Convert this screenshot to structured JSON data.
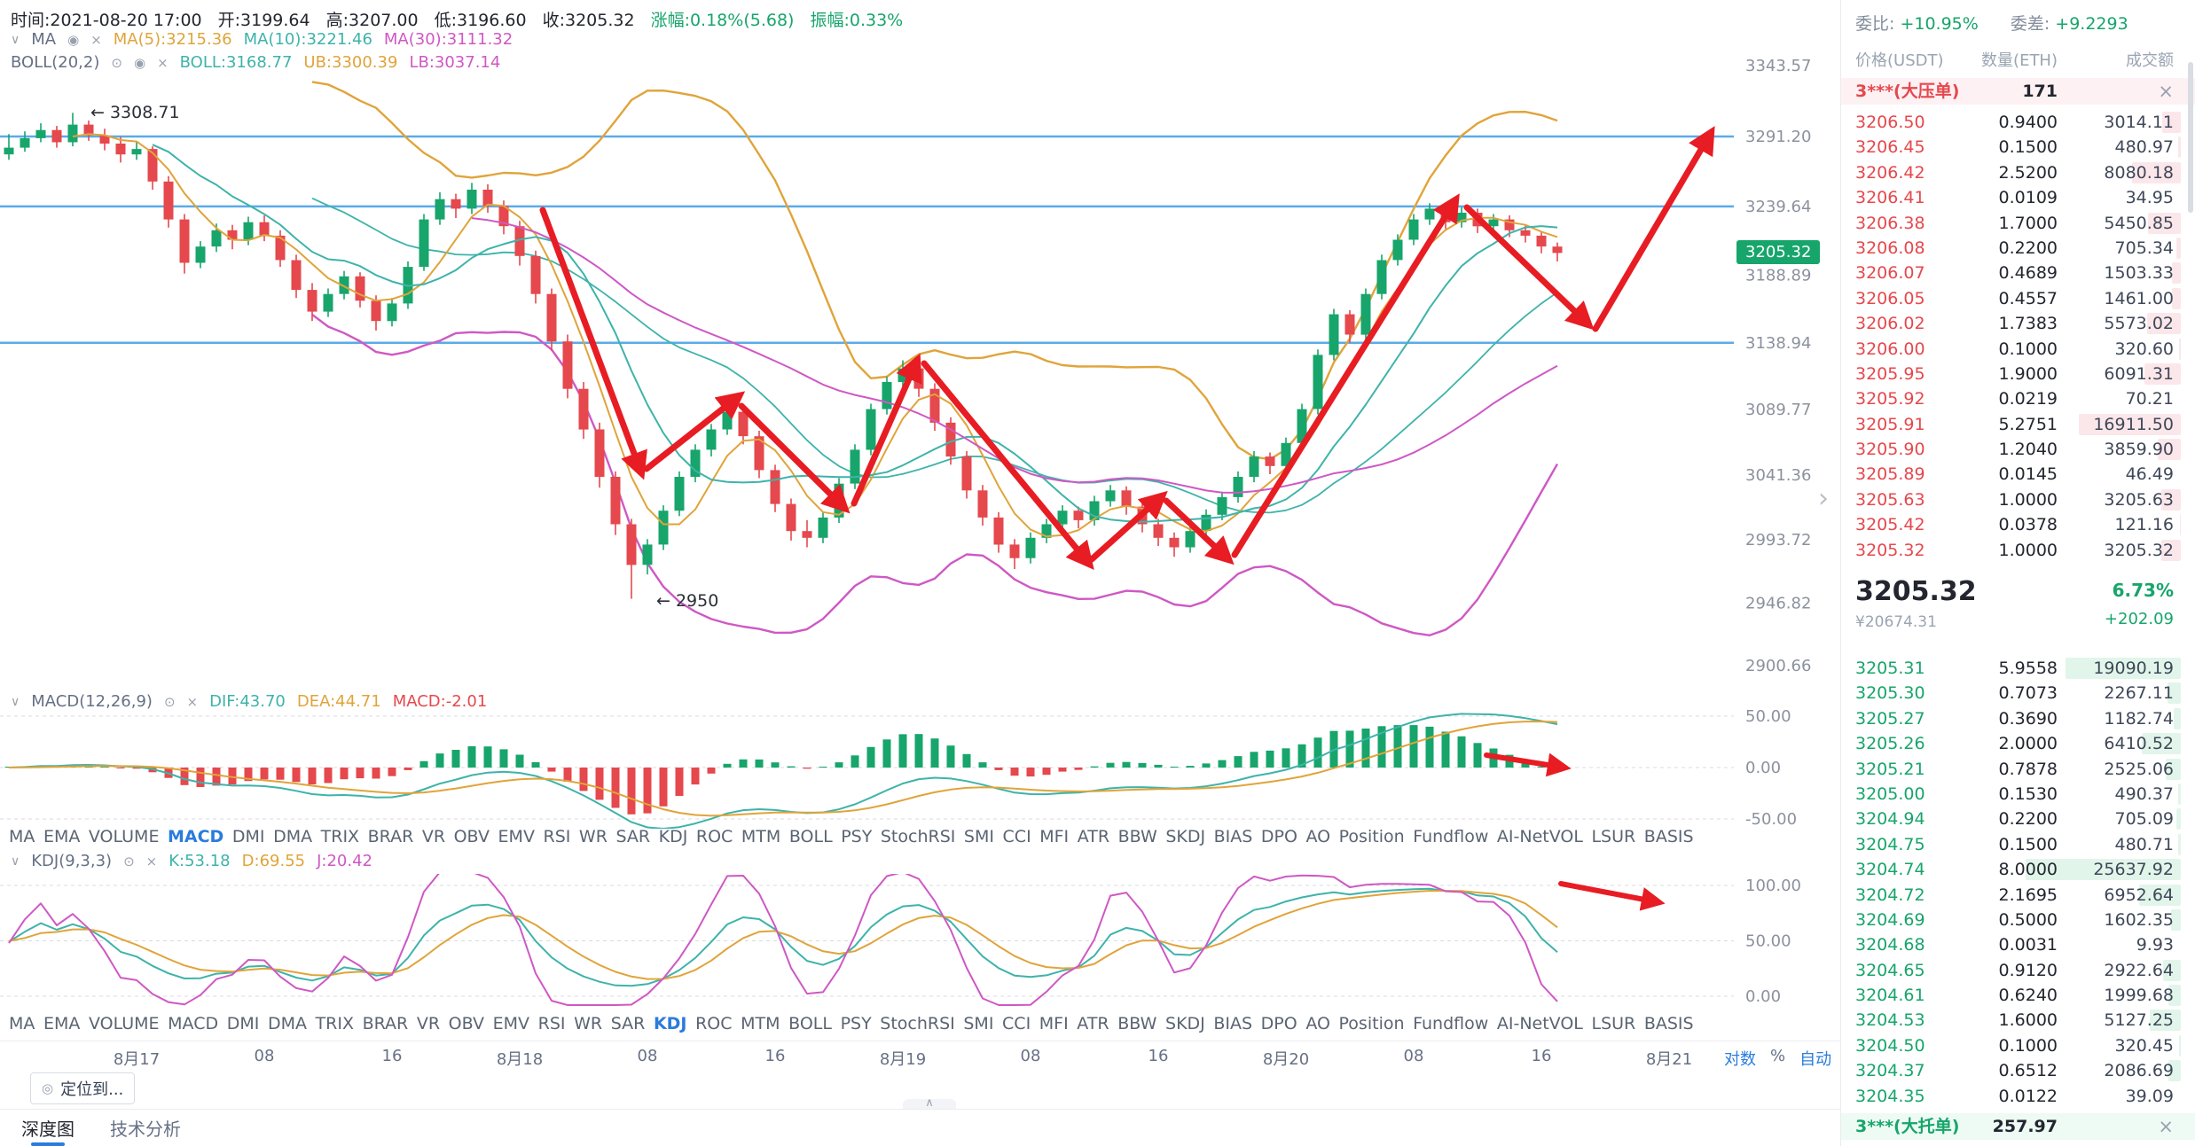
{
  "colors": {
    "up": "#17a56b",
    "down": "#e5484d",
    "blue_accent": "#2b7cdb",
    "blue_line": "#5aabe8",
    "yellow": "#e0a43a",
    "teal": "#3eb3aa",
    "magenta": "#cf58c4",
    "arrow_red": "#e81c23",
    "badge_green": "#17a56b"
  },
  "header": {
    "time": "时间:2021-08-20 17:00",
    "open": "开:3199.64",
    "high": "高:3207.00",
    "low": "低:3196.60",
    "close": "收:3205.32",
    "change": "涨幅:0.18%(5.68)",
    "amplitude": "振幅:0.33%"
  },
  "ma_row": {
    "name": "MA",
    "ma5": "MA(5):3215.36",
    "ma10": "MA(10):3221.46",
    "ma30": "MA(30):3111.32"
  },
  "boll_row": {
    "name": "BOLL(20,2)",
    "boll": "BOLL:3168.77",
    "ub": "UB:3300.39",
    "lb": "LB:3037.14"
  },
  "macd_row": {
    "name": "MACD(12,26,9)",
    "dif": "DIF:43.70",
    "dea": "DEA:44.71",
    "macd": "MACD:-2.01"
  },
  "kdj_row": {
    "name": "KDJ(9,3,3)",
    "k": "K:53.18",
    "d": "D:69.55",
    "j": "J:20.42"
  },
  "annotations": {
    "high_label": "← 3308.71",
    "low_label": "← 2950",
    "price_tag": "3205.32"
  },
  "indicator_tabs": [
    "MA",
    "EMA",
    "VOLUME",
    "MACD",
    "DMI",
    "DMA",
    "TRIX",
    "BRAR",
    "VR",
    "OBV",
    "EMV",
    "RSI",
    "WR",
    "SAR",
    "KDJ",
    "ROC",
    "MTM",
    "BOLL",
    "PSY",
    "StochRSI",
    "SMI",
    "CCI",
    "MFI",
    "ATR",
    "BBW",
    "SKDJ",
    "BIAS",
    "DPO",
    "AO",
    "Position",
    "Fundflow",
    "AI-NetVOL",
    "LSUR",
    "BASIS"
  ],
  "active_tab_row1": "MACD",
  "active_tab_row2": "KDJ",
  "scale_controls": {
    "log": "对数",
    "percent": "%",
    "auto": "自动"
  },
  "locate_button": "定位到...",
  "bottom_tabs": [
    "深度图",
    "技术分析"
  ],
  "order_book": {
    "ratio_label": "委比:",
    "ratio_value": "+10.95%",
    "diff_label": "委差:",
    "diff_value": "+9.2293",
    "columns": [
      "价格(USDT)",
      "数量(ETH)",
      "成交额"
    ],
    "big_sell": {
      "label": "3***(大压单)",
      "value": "171"
    },
    "big_buy": {
      "label": "3***(大托单)",
      "value": "257.97"
    },
    "asks": [
      [
        "3206.50",
        "0.9400",
        "3014.11"
      ],
      [
        "3206.45",
        "0.1500",
        "480.97"
      ],
      [
        "3206.42",
        "2.5200",
        "8080.18"
      ],
      [
        "3206.41",
        "0.0109",
        "34.95"
      ],
      [
        "3206.38",
        "1.7000",
        "5450.85"
      ],
      [
        "3206.08",
        "0.2200",
        "705.34"
      ],
      [
        "3206.07",
        "0.4689",
        "1503.33"
      ],
      [
        "3206.05",
        "0.4557",
        "1461.00"
      ],
      [
        "3206.02",
        "1.7383",
        "5573.02"
      ],
      [
        "3206.00",
        "0.1000",
        "320.60"
      ],
      [
        "3205.95",
        "1.9000",
        "6091.31"
      ],
      [
        "3205.92",
        "0.0219",
        "70.21"
      ],
      [
        "3205.91",
        "5.2751",
        "16911.50"
      ],
      [
        "3205.90",
        "1.2040",
        "3859.90"
      ],
      [
        "3205.89",
        "0.0145",
        "46.49"
      ],
      [
        "3205.63",
        "1.0000",
        "3205.63"
      ],
      [
        "3205.42",
        "0.0378",
        "121.16"
      ],
      [
        "3205.32",
        "1.0000",
        "3205.32"
      ]
    ],
    "last_price": "3205.32",
    "change_pct": "6.73%",
    "cny": "¥20674.31",
    "change_abs": "+202.09",
    "bids": [
      [
        "3205.31",
        "5.9558",
        "19090.19"
      ],
      [
        "3205.30",
        "0.7073",
        "2267.11"
      ],
      [
        "3205.27",
        "0.3690",
        "1182.74"
      ],
      [
        "3205.26",
        "2.0000",
        "6410.52"
      ],
      [
        "3205.21",
        "0.7878",
        "2525.06"
      ],
      [
        "3205.00",
        "0.1530",
        "490.37"
      ],
      [
        "3204.94",
        "0.2200",
        "705.09"
      ],
      [
        "3204.75",
        "0.1500",
        "480.71"
      ],
      [
        "3204.74",
        "8.0000",
        "25637.92"
      ],
      [
        "3204.72",
        "2.1695",
        "6952.64"
      ],
      [
        "3204.69",
        "0.5000",
        "1602.35"
      ],
      [
        "3204.68",
        "0.0031",
        "9.93"
      ],
      [
        "3204.65",
        "0.9120",
        "2922.64"
      ],
      [
        "3204.61",
        "0.6240",
        "1999.68"
      ],
      [
        "3204.53",
        "1.6000",
        "5127.25"
      ],
      [
        "3204.50",
        "0.1000",
        "320.45"
      ],
      [
        "3204.37",
        "0.6512",
        "2086.69"
      ],
      [
        "3204.35",
        "0.0122",
        "39.09"
      ]
    ]
  },
  "chart_data": {
    "type": "candlestick",
    "price_axis_labels": [
      "3343.57",
      "3291.20",
      "3239.64",
      "3188.89",
      "3138.94",
      "3089.77",
      "3041.36",
      "2993.72",
      "2946.82",
      "2900.66"
    ],
    "macd_axis_labels": [
      "50.00",
      "0.00",
      "-50.00"
    ],
    "kdj_axis_labels": [
      "100.00",
      "50.00",
      "0.00"
    ],
    "horizontal_lines": [
      3291.2,
      3239.64,
      3138.94
    ],
    "time_axis": [
      "8月17",
      "08",
      "16",
      "8月18",
      "08",
      "16",
      "8月19",
      "08",
      "16",
      "8月20",
      "08",
      "16",
      "8月21"
    ],
    "last_price": 3205.32,
    "high_annotation": 3308.71,
    "low_annotation": 2950,
    "candles": [
      [
        3278,
        3293,
        3274,
        3283
      ],
      [
        3283,
        3295,
        3280,
        3290
      ],
      [
        3290,
        3301,
        3287,
        3296
      ],
      [
        3296,
        3299,
        3283,
        3287
      ],
      [
        3287,
        3308.71,
        3284,
        3300
      ],
      [
        3300,
        3303,
        3288,
        3292
      ],
      [
        3292,
        3297,
        3281,
        3286
      ],
      [
        3286,
        3291,
        3272,
        3278
      ],
      [
        3278,
        3287,
        3274,
        3282
      ],
      [
        3282,
        3284,
        3252,
        3258
      ],
      [
        3258,
        3262,
        3224,
        3230
      ],
      [
        3230,
        3234,
        3190,
        3198
      ],
      [
        3198,
        3214,
        3194,
        3210
      ],
      [
        3210,
        3227,
        3206,
        3222
      ],
      [
        3222,
        3226,
        3208,
        3215
      ],
      [
        3215,
        3232,
        3211,
        3228
      ],
      [
        3228,
        3233,
        3214,
        3218
      ],
      [
        3218,
        3222,
        3195,
        3200
      ],
      [
        3200,
        3204,
        3172,
        3178
      ],
      [
        3178,
        3183,
        3155,
        3162
      ],
      [
        3162,
        3179,
        3158,
        3175
      ],
      [
        3175,
        3192,
        3171,
        3188
      ],
      [
        3188,
        3191,
        3165,
        3170
      ],
      [
        3170,
        3174,
        3148,
        3155
      ],
      [
        3155,
        3172,
        3151,
        3168
      ],
      [
        3168,
        3199,
        3164,
        3195
      ],
      [
        3195,
        3234,
        3192,
        3230
      ],
      [
        3230,
        3250,
        3226,
        3245
      ],
      [
        3245,
        3249,
        3231,
        3238
      ],
      [
        3238,
        3257,
        3234,
        3252
      ],
      [
        3252,
        3256,
        3235,
        3240
      ],
      [
        3240,
        3244,
        3219,
        3225
      ],
      [
        3225,
        3229,
        3196,
        3203
      ],
      [
        3203,
        3207,
        3168,
        3175
      ],
      [
        3175,
        3179,
        3133,
        3140
      ],
      [
        3140,
        3145,
        3098,
        3105
      ],
      [
        3105,
        3110,
        3068,
        3075
      ],
      [
        3075,
        3080,
        3032,
        3040
      ],
      [
        3040,
        3044,
        2997,
        3005
      ],
      [
        3005,
        3009,
        2950,
        2975
      ],
      [
        2975,
        2994,
        2968,
        2990
      ],
      [
        2990,
        3019,
        2986,
        3015
      ],
      [
        3015,
        3044,
        3011,
        3040
      ],
      [
        3040,
        3064,
        3036,
        3060
      ],
      [
        3060,
        3079,
        3055,
        3075
      ],
      [
        3075,
        3093,
        3071,
        3088
      ],
      [
        3088,
        3091,
        3064,
        3070
      ],
      [
        3070,
        3074,
        3039,
        3045
      ],
      [
        3045,
        3049,
        3014,
        3020
      ],
      [
        3020,
        3024,
        2993,
        3000
      ],
      [
        3000,
        3008,
        2988,
        2995
      ],
      [
        2995,
        3014,
        2991,
        3010
      ],
      [
        3010,
        3039,
        3006,
        3035
      ],
      [
        3035,
        3064,
        3031,
        3060
      ],
      [
        3060,
        3094,
        3056,
        3090
      ],
      [
        3090,
        3114,
        3086,
        3110
      ],
      [
        3110,
        3126,
        3105,
        3120
      ],
      [
        3120,
        3123,
        3099,
        3105
      ],
      [
        3105,
        3109,
        3074,
        3080
      ],
      [
        3080,
        3084,
        3049,
        3055
      ],
      [
        3055,
        3059,
        3024,
        3030
      ],
      [
        3030,
        3034,
        3004,
        3010
      ],
      [
        3010,
        3014,
        2984,
        2990
      ],
      [
        2990,
        2994,
        2972,
        2980
      ],
      [
        2980,
        2999,
        2976,
        2995
      ],
      [
        2995,
        3009,
        2991,
        3005
      ],
      [
        3005,
        3019,
        3001,
        3015
      ],
      [
        3015,
        3018,
        3002,
        3008
      ],
      [
        3008,
        3026,
        3004,
        3022
      ],
      [
        3022,
        3034,
        3018,
        3030
      ],
      [
        3030,
        3033,
        3012,
        3018
      ],
      [
        3018,
        3022,
        2999,
        3005
      ],
      [
        3005,
        3009,
        2989,
        2995
      ],
      [
        2995,
        2999,
        2981,
        2988
      ],
      [
        2988,
        3004,
        2984,
        3000
      ],
      [
        3000,
        3016,
        2996,
        3012
      ],
      [
        3012,
        3029,
        3008,
        3025
      ],
      [
        3025,
        3044,
        3021,
        3040
      ],
      [
        3040,
        3059,
        3036,
        3055
      ],
      [
        3055,
        3058,
        3042,
        3048
      ],
      [
        3048,
        3069,
        3044,
        3065
      ],
      [
        3065,
        3094,
        3061,
        3090
      ],
      [
        3090,
        3134,
        3086,
        3130
      ],
      [
        3130,
        3164,
        3126,
        3160
      ],
      [
        3160,
        3163,
        3139,
        3145
      ],
      [
        3145,
        3179,
        3141,
        3175
      ],
      [
        3175,
        3204,
        3171,
        3200
      ],
      [
        3200,
        3219,
        3196,
        3215
      ],
      [
        3215,
        3234,
        3211,
        3230
      ],
      [
        3230,
        3242,
        3226,
        3238
      ],
      [
        3238,
        3241,
        3223,
        3228
      ],
      [
        3228,
        3239,
        3224,
        3235
      ],
      [
        3235,
        3238,
        3220,
        3225
      ],
      [
        3225,
        3234,
        3221,
        3230
      ],
      [
        3230,
        3233,
        3217,
        3222
      ],
      [
        3222,
        3226,
        3213,
        3218
      ],
      [
        3218,
        3221,
        3205,
        3210
      ],
      [
        3210,
        3213,
        3199,
        3205.32
      ]
    ]
  }
}
